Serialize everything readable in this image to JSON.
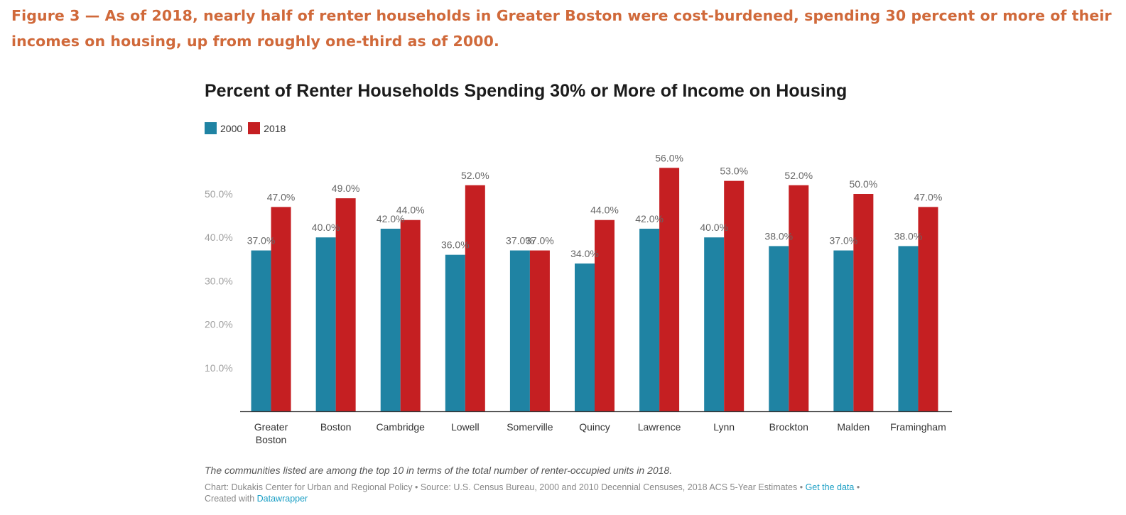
{
  "figure_caption": "Figure 3 — As of 2018, nearly half of renter households in Greater Boston were cost-burdened, spending 30 percent or more of their incomes on housing, up from roughly one-third as of 2000.",
  "colors": {
    "caption": "#d0693a",
    "series_2000": "#1f83a3",
    "series_2018": "#c51f22",
    "link": "#1b9fc5"
  },
  "chart_data": {
    "type": "bar",
    "title": "Percent of Renter Households Spending 30% or More of Income on Housing",
    "categories": [
      "Greater\nBoston",
      "Boston",
      "Cambridge",
      "Lowell",
      "Somerville",
      "Quincy",
      "Lawrence",
      "Lynn",
      "Brockton",
      "Malden",
      "Framingham"
    ],
    "series": [
      {
        "name": "2000",
        "color": "#1f83a3",
        "values": [
          37,
          40,
          42,
          36,
          37,
          34,
          42,
          40,
          38,
          37,
          38
        ],
        "labels": [
          "37.0%",
          "40.0%",
          "42.0%",
          "36.0%",
          "37.0%",
          "34.0%",
          "42.0%",
          "40.0%",
          "38.0%",
          "37.0%",
          "38.0%"
        ]
      },
      {
        "name": "2018",
        "color": "#c51f22",
        "values": [
          47,
          49,
          44,
          52,
          37,
          44,
          56,
          53,
          52,
          50,
          47
        ],
        "labels": [
          "47.0%",
          "49.0%",
          "44.0%",
          "52.0%",
          "37.0%",
          "44.0%",
          "56.0%",
          "53.0%",
          "52.0%",
          "50.0%",
          "47.0%"
        ]
      }
    ],
    "y_ticks": [
      10,
      20,
      30,
      40,
      50
    ],
    "y_tick_labels": [
      "10.0%",
      "20.0%",
      "30.0%",
      "40.0%",
      "50.0%"
    ],
    "ylim": [
      0,
      60
    ],
    "grid": false,
    "legend_position": "top-left"
  },
  "note": "The communities listed are among the top 10 in terms of the total number of renter-occupied units in 2018.",
  "source": {
    "text": "Chart: Dukakis Center for Urban and Regional Policy • Source: U.S. Census Bureau, 2000 and 2010 Decennial Censuses, 2018 ACS 5-Year Estimates • ",
    "get_data_link": "Get the data",
    "separator": " •",
    "created_with": "Created with ",
    "datawrapper_link": "Datawrapper"
  }
}
